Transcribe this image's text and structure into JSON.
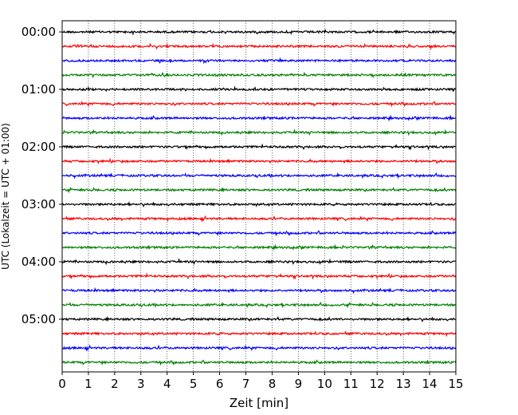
{
  "chart_data": {
    "type": "line",
    "title": "",
    "xlabel": "Zeit  [min]",
    "ylabel": "UTC (Lokalzeit = UTC + 01:00)",
    "xlim": [
      0,
      15
    ],
    "x_ticks": [
      "0",
      "1",
      "2",
      "3",
      "4",
      "5",
      "6",
      "7",
      "8",
      "9",
      "10",
      "11",
      "12",
      "13",
      "14",
      "15"
    ],
    "y_ticks": [
      "00:00",
      "01:00",
      "02:00",
      "03:00",
      "04:00",
      "05:00"
    ],
    "grid": "vertical dotted lines at each minute",
    "legend": "none",
    "trace_interval_min": 15,
    "trace_colors": [
      "#000000",
      "#ff0000",
      "#0000ff",
      "#008000"
    ],
    "series": [
      {
        "start": "00:00",
        "color": "#000000"
      },
      {
        "start": "00:15",
        "color": "#ff0000"
      },
      {
        "start": "00:30",
        "color": "#0000ff"
      },
      {
        "start": "00:45",
        "color": "#008000"
      },
      {
        "start": "01:00",
        "color": "#000000"
      },
      {
        "start": "01:15",
        "color": "#ff0000"
      },
      {
        "start": "01:30",
        "color": "#0000ff"
      },
      {
        "start": "01:45",
        "color": "#008000"
      },
      {
        "start": "02:00",
        "color": "#000000"
      },
      {
        "start": "02:15",
        "color": "#ff0000"
      },
      {
        "start": "02:30",
        "color": "#0000ff"
      },
      {
        "start": "02:45",
        "color": "#008000"
      },
      {
        "start": "03:00",
        "color": "#000000"
      },
      {
        "start": "03:15",
        "color": "#ff0000"
      },
      {
        "start": "03:30",
        "color": "#0000ff"
      },
      {
        "start": "03:45",
        "color": "#008000"
      },
      {
        "start": "04:00",
        "color": "#000000"
      },
      {
        "start": "04:15",
        "color": "#ff0000"
      },
      {
        "start": "04:30",
        "color": "#0000ff"
      },
      {
        "start": "04:45",
        "color": "#008000"
      },
      {
        "start": "05:00",
        "color": "#000000"
      },
      {
        "start": "05:15",
        "color": "#ff0000"
      },
      {
        "start": "05:30",
        "color": "#0000ff"
      },
      {
        "start": "05:45",
        "color": "#008000"
      }
    ]
  }
}
